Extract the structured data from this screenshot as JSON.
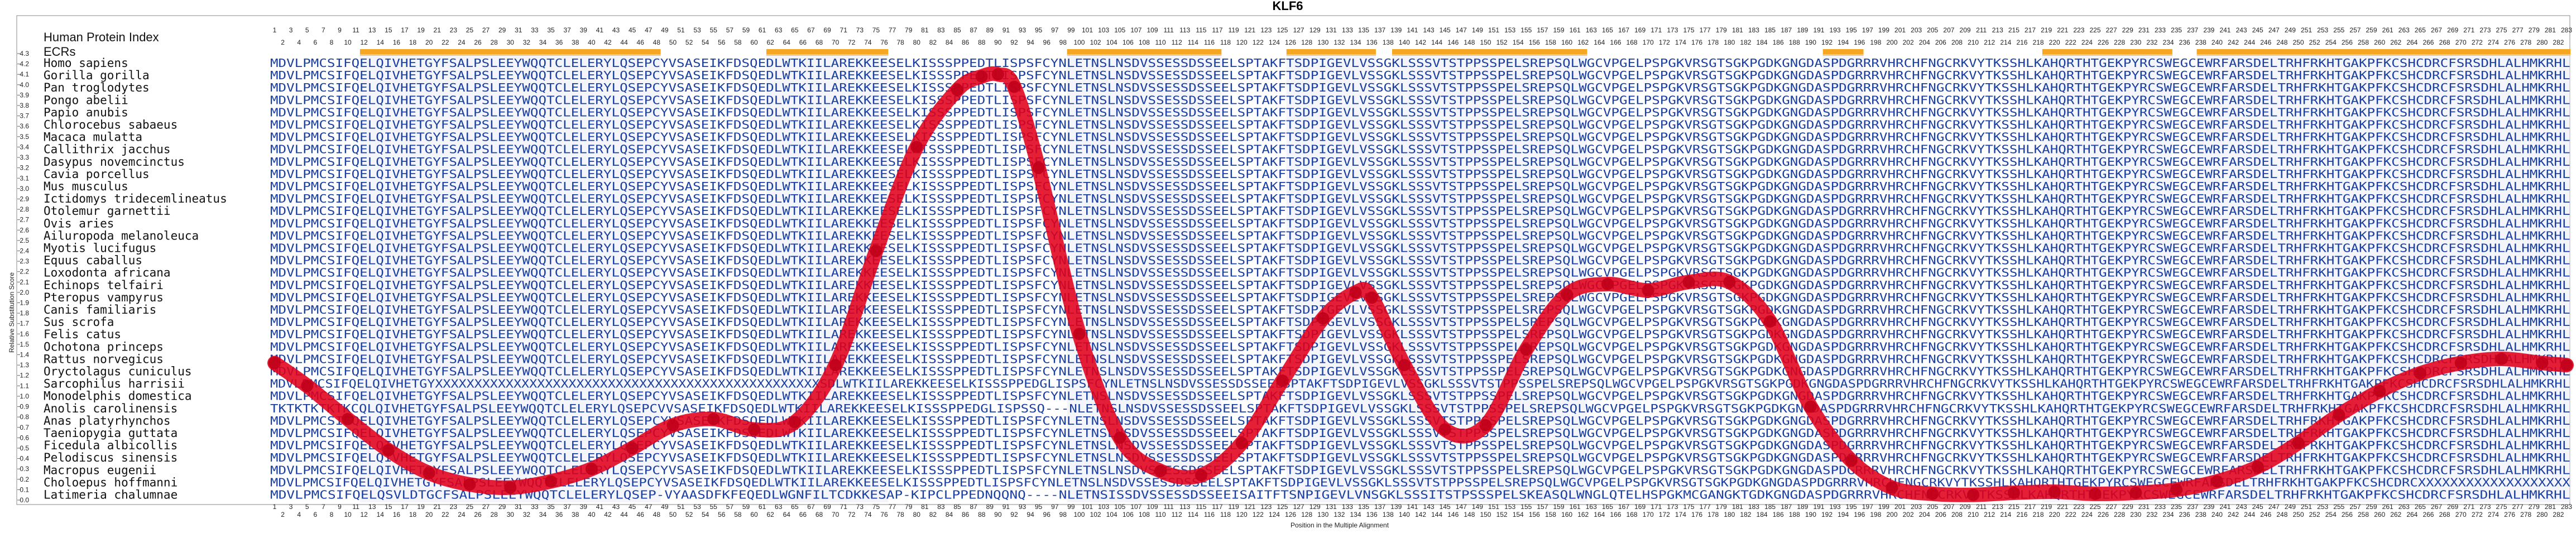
{
  "chart_data": {
    "type": "line",
    "title": "KLF6",
    "xlabel": "Position in the Multiple Alignment",
    "ylabel": "Relative Substitution Score",
    "ylim": [
      0,
      4.3
    ],
    "yticks": [
      "0.0",
      "0.1",
      "0.2",
      "0.3",
      "0.4",
      "0.5",
      "0.6",
      "0.7",
      "0.8",
      "0.9",
      "1.0",
      "1.1",
      "1.2",
      "1.3",
      "1.4",
      "1.5",
      "1.6",
      "1.7",
      "1.8",
      "1.9",
      "2.0",
      "2.1",
      "2.2",
      "2.3",
      "2.4",
      "2.5",
      "2.6",
      "2.7",
      "2.8",
      "2.9",
      "3.0",
      "3.1",
      "3.2",
      "3.3",
      "3.4",
      "3.5",
      "3.6",
      "3.7",
      "3.8",
      "3.9",
      "4.0",
      "4.1",
      "4.2",
      "4.3"
    ],
    "xrange": [
      1,
      283
    ],
    "track_labels": {
      "human_index": "Human Protein Index",
      "ecrs": "ECRs"
    },
    "ecr_segments": [
      [
        12,
        48
      ],
      [
        62,
        76
      ],
      [
        99,
        117
      ],
      [
        126,
        136
      ],
      [
        139,
        162
      ],
      [
        192,
        196
      ],
      [
        219,
        234
      ],
      [
        238,
        283
      ]
    ],
    "curve": {
      "x": [
        1,
        5,
        10,
        15,
        20,
        25,
        30,
        35,
        40,
        45,
        50,
        55,
        60,
        65,
        70,
        75,
        80,
        85,
        88,
        90,
        92,
        95,
        100,
        105,
        110,
        115,
        120,
        125,
        130,
        134,
        136,
        140,
        145,
        150,
        155,
        160,
        165,
        170,
        175,
        180,
        185,
        190,
        195,
        200,
        205,
        210,
        215,
        220,
        225,
        230,
        235,
        240,
        245,
        250,
        255,
        260,
        265,
        270,
        275,
        280,
        283
      ],
      "y": [
        1.32,
        1.1,
        0.78,
        0.48,
        0.26,
        0.15,
        0.12,
        0.18,
        0.3,
        0.5,
        0.72,
        0.78,
        0.68,
        0.75,
        1.3,
        2.4,
        3.4,
        3.95,
        4.08,
        4.1,
        3.98,
        3.2,
        1.6,
        0.6,
        0.28,
        0.24,
        0.55,
        1.15,
        1.75,
        2.0,
        1.95,
        1.3,
        0.68,
        0.72,
        1.45,
        1.98,
        2.08,
        2.02,
        2.1,
        2.1,
        1.72,
        0.9,
        0.38,
        0.12,
        0.06,
        0.05,
        0.07,
        0.08,
        0.06,
        0.07,
        0.1,
        0.18,
        0.32,
        0.55,
        0.82,
        1.05,
        1.22,
        1.32,
        1.36,
        1.32,
        1.3
      ]
    },
    "species": [
      "Homo sapiens",
      "Gorilla gorilla",
      "Pan troglodytes",
      "Pongo abelii",
      "Papio anubis",
      "Chlorocebus sabaeus",
      "Macaca mulatta",
      "Callithrix jacchus",
      "Dasypus novemcinctus",
      "Cavia porcellus",
      "Mus musculus",
      "Ictidomys tridecemlineatus",
      "Otolemur garnettii",
      "Ovis aries",
      "Ailuropoda melanoleuca",
      "Myotis lucifugus",
      "Equus caballus",
      "Loxodonta africana",
      "Echinops telfairi",
      "Pteropus vampyrus",
      "Canis familiaris",
      "Sus scrofa",
      "Felis catus",
      "Ochotona princeps",
      "Rattus norvegicus",
      "Oryctolagus cuniculus",
      "Sarcophilus harrisii",
      "Monodelphis domestica",
      "Anolis carolinensis",
      "Anas platyrhynchos",
      "Taeniopygia guttata",
      "Ficedula albicollis",
      "Pelodiscus sinensis",
      "Macropus eugenii",
      "Choloepus hoffmanni",
      "Latimeria chalumnae"
    ],
    "sequences": {
      "consensus": "MDVLPMCSIFQELQIVHETGYFSALPSLEEYWQQTCLELERYLQSEPCYVSASEIKFDSQEDLWTKIILAREKKEESELKISSSPPEDTLISPSFCYNLETNSLNSDVSSESSDSSEELSPTAKFTSDPIGEVLVSSGKLSSSVTSTPPSSPELSREPSQLWGCVPGELPSPGKVRSGTSGKPGDKGNGDASPDGRRRVHRCHFNGCRKVYTKSSHLKAHQRTHTGEKPYRCSWEGCEWRFARSDELTRHFRKHTGAKPFKCSHCDRCFSRSDHLALHMKRHL",
      "anolis": "TKTKTKTKTKCQLQIVHETGYFSALPSLEEYWQQTCLELERYLQSEPCVVSASEIKFDSQEDLWTKIILAREKKEESELKISSSPPEDGLISPSSQ---NLETNSLNSDVSSESSDSSEELSPTAKFTSDPIGEVLVSSGKLSSSVTSTPPSSPELSREPSQLWGCVPGELPSPGKVRSGTSGKPGDKGNGDASPDGRRRVHRCHFNGCRKVYTKSSHLKAHQRTHTGEKPYRCSWEGCEWRFARSDELTRHFRKHTGAKPFKCSHCDRCFSRSDHLALHMKRHL",
      "sarco": "MDVLPMCSIFQELQIVHETGYXXXXXXXXXXXXXXXXXXXXXXXXXXXXXXXXXXXXXXXXXXXXXXXXXSDLWTKIILAREKKEESELKISSSPPEDGLISPSFCYNLETNSLNSDVSSESSDSSEELSPTAKFTSDPIGEVLVSSGKLSSSVTSTPPSSPELSREPSQLWGCVPGELPSPGKVRSGTSGKPGDKGNGDASPDGRRRVHRCHFNGCRKVYTKSSHLKAHQRTHTGEKPYRCSWEGCEWRFARSDELTRHFRKHTGAKPFKCSHCDRCFSRSDHLALHMKRHL",
      "choloepus": "MDVLPMCSIFQELQIVHETGYFSALPSLEEYWQQTCLELERYLQSEPCYVSASEIKFDSQEDLWTKIILAREKKEESELKISSSPPEDTLISPSFCYNLETNSLNSDVSSESSDSSEELSPTAKFTSDPIGEVLVSSGKLSSSVTSTPPSSPELSREPSQLWGCVPGELPSPGKVRSGTSGKPGDKGNGDASPDGRRRVHRCHFNGCRKVYTKSSHLKAHQRTHTGEKPYRCSWEGCEWRFARSDELTRHFRKHTGAKPFKCSHCDRCXXXXXXXXXXXXXXXXXXX",
      "latimeria": "MDVLPMCSIFQELQSVLDTGCFSALPSLEEYWQQTCLELERYLQSEP-VYAASDFKFEQEDLWGNFILTCDKKESAP-KIPCLPPEDNQQNQ----NLETNSISSDVSSESSDSSEEISAITFTSNPIGEVLVNSGKLSSSITSTPSSSPELSKEASQLWNGLQTELHSPGKMCGANGKTGDKGNGDASPDGRRRVHRCHFNGCRKVYTKSSHLKAHQRTHTGEKPYRCSWEGCEWRFARSDELTRHFRKHTGAKPFKCSHCDRCFSRSDHLALHMKRHL"
    },
    "colors": {
      "curve": "#e0001a",
      "marker": "#c0001a",
      "ecr": "#f5a623",
      "sequence": "#1a3fa0",
      "conserved_var": "#2e8b57",
      "ecr_band": "#e8ecf8"
    }
  }
}
